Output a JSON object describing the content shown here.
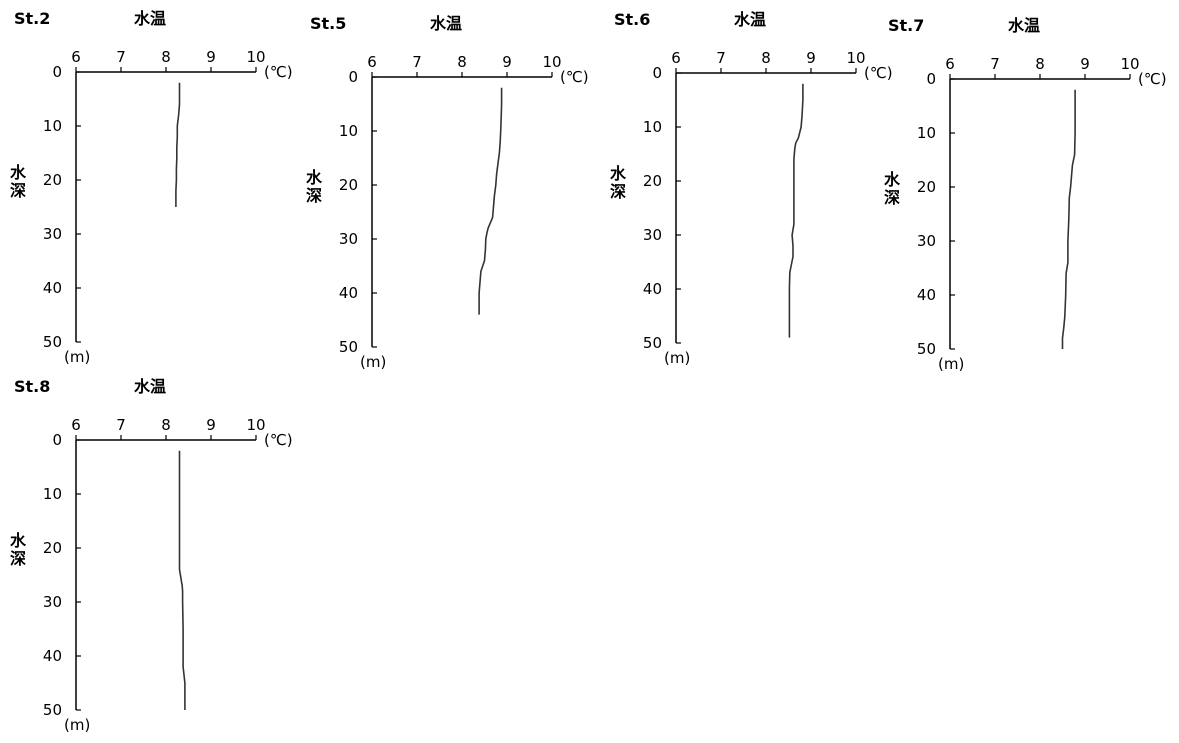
{
  "chart_data": [
    {
      "type": "line",
      "station": "St.2",
      "title": "水温",
      "xlabel": "水温",
      "ylabel": "水深",
      "x_unit": "(℃)",
      "y_unit": "(m)",
      "xlim": [
        6,
        10
      ],
      "ylim": [
        0,
        50
      ],
      "x_ticks": [
        6,
        7,
        8,
        9,
        10
      ],
      "y_ticks": [
        0,
        10,
        20,
        30,
        40,
        50
      ],
      "x_axis_position": "top",
      "y_inverted": true,
      "grid": false,
      "series": [
        {
          "depth": [
            2,
            4,
            6,
            8,
            10,
            12,
            14,
            16,
            18,
            20,
            22,
            24,
            25
          ],
          "temperature": [
            8.3,
            8.3,
            8.3,
            8.28,
            8.25,
            8.25,
            8.24,
            8.24,
            8.23,
            8.23,
            8.22,
            8.22,
            8.22
          ]
        }
      ]
    },
    {
      "type": "line",
      "station": "St.5",
      "title": "水温",
      "xlabel": "水温",
      "ylabel": "水深",
      "x_unit": "(℃)",
      "y_unit": "(m)",
      "xlim": [
        6,
        10
      ],
      "ylim": [
        0,
        50
      ],
      "x_ticks": [
        6,
        7,
        8,
        9,
        10
      ],
      "y_ticks": [
        0,
        10,
        20,
        30,
        40,
        50
      ],
      "x_axis_position": "top",
      "y_inverted": true,
      "grid": false,
      "series": [
        {
          "depth": [
            2,
            5,
            8,
            10,
            12,
            14,
            16,
            18,
            20,
            22,
            24,
            26,
            28,
            29,
            30,
            32,
            34,
            36,
            38,
            40,
            42,
            44
          ],
          "temperature": [
            8.88,
            8.88,
            8.87,
            8.86,
            8.85,
            8.83,
            8.8,
            8.77,
            8.75,
            8.72,
            8.7,
            8.68,
            8.58,
            8.55,
            8.53,
            8.52,
            8.5,
            8.42,
            8.4,
            8.38,
            8.38,
            8.38
          ]
        }
      ]
    },
    {
      "type": "line",
      "station": "St.6",
      "title": "水温",
      "xlabel": "水温",
      "ylabel": "水深",
      "x_unit": "(℃)",
      "y_unit": "(m)",
      "xlim": [
        6,
        10
      ],
      "ylim": [
        0,
        50
      ],
      "x_ticks": [
        6,
        7,
        8,
        9,
        10
      ],
      "y_ticks": [
        0,
        10,
        20,
        30,
        40,
        50
      ],
      "x_axis_position": "top",
      "y_inverted": true,
      "grid": false,
      "series": [
        {
          "depth": [
            2,
            5,
            8,
            10,
            12,
            13,
            14,
            16,
            20,
            24,
            28,
            29,
            30,
            32,
            34,
            36,
            37,
            40,
            44,
            49
          ],
          "temperature": [
            8.82,
            8.82,
            8.8,
            8.78,
            8.72,
            8.66,
            8.64,
            8.62,
            8.62,
            8.62,
            8.62,
            8.6,
            8.58,
            8.6,
            8.6,
            8.55,
            8.53,
            8.52,
            8.52,
            8.52
          ]
        }
      ]
    },
    {
      "type": "line",
      "station": "St.7",
      "title": "水温",
      "xlabel": "水温",
      "ylabel": "水深",
      "x_unit": "(℃)",
      "y_unit": "(m)",
      "xlim": [
        6,
        10
      ],
      "ylim": [
        0,
        50
      ],
      "x_ticks": [
        6,
        7,
        8,
        9,
        10
      ],
      "y_ticks": [
        0,
        10,
        20,
        30,
        40,
        50
      ],
      "x_axis_position": "top",
      "y_inverted": true,
      "grid": false,
      "series": [
        {
          "depth": [
            2,
            5,
            10,
            14,
            16,
            18,
            20,
            22,
            26,
            30,
            34,
            36,
            40,
            44,
            46,
            48,
            50
          ],
          "temperature": [
            8.78,
            8.78,
            8.78,
            8.77,
            8.72,
            8.7,
            8.68,
            8.65,
            8.64,
            8.62,
            8.62,
            8.58,
            8.57,
            8.55,
            8.53,
            8.5,
            8.5
          ]
        }
      ]
    },
    {
      "type": "line",
      "station": "St.8",
      "title": "水温",
      "xlabel": "水温",
      "ylabel": "水深",
      "x_unit": "(℃)",
      "y_unit": "(m)",
      "xlim": [
        6,
        10
      ],
      "ylim": [
        0,
        50
      ],
      "x_ticks": [
        6,
        7,
        8,
        9,
        10
      ],
      "y_ticks": [
        0,
        10,
        20,
        30,
        40,
        50
      ],
      "x_axis_position": "top",
      "y_inverted": true,
      "grid": false,
      "series": [
        {
          "depth": [
            2,
            5,
            10,
            15,
            20,
            24,
            25,
            27,
            28,
            30,
            35,
            40,
            42,
            45,
            50
          ],
          "temperature": [
            8.3,
            8.3,
            8.3,
            8.3,
            8.3,
            8.3,
            8.32,
            8.36,
            8.37,
            8.37,
            8.38,
            8.38,
            8.38,
            8.42,
            8.42
          ]
        }
      ]
    }
  ]
}
